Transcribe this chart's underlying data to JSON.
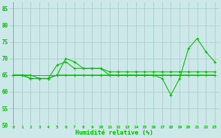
{
  "xlabel": "Humidité relative (%)",
  "xlim": [
    -0.5,
    23.5
  ],
  "ylim": [
    50,
    87
  ],
  "yticks": [
    50,
    55,
    60,
    65,
    70,
    75,
    80,
    85
  ],
  "xticks": [
    0,
    1,
    2,
    3,
    4,
    5,
    6,
    7,
    8,
    9,
    10,
    11,
    12,
    13,
    14,
    15,
    16,
    17,
    18,
    19,
    20,
    21,
    22,
    23
  ],
  "background_color": "#cce8e8",
  "grid_color": "#aacccc",
  "line_color": "#00bb00",
  "series1_y": [
    65,
    65,
    65,
    64,
    64,
    65,
    70,
    69,
    67,
    67,
    67,
    65,
    65,
    65,
    65,
    65,
    65,
    65,
    65,
    65,
    65,
    65,
    65,
    65
  ],
  "series2_y": [
    65,
    65,
    64,
    64,
    64,
    68,
    69,
    67,
    67,
    67,
    67,
    66,
    66,
    66,
    66,
    66,
    66,
    66,
    66,
    66,
    66,
    66,
    66,
    66
  ],
  "series3_y": [
    65,
    65,
    64,
    64,
    64,
    65,
    65,
    65,
    65,
    65,
    65,
    65,
    65,
    65,
    65,
    65,
    65,
    64,
    59,
    64,
    73,
    76,
    72,
    69
  ],
  "series4_y": [
    65,
    65,
    65,
    65,
    65,
    65,
    65,
    65,
    65,
    65,
    65,
    65,
    65,
    65,
    65,
    65,
    65,
    65,
    65,
    65,
    65,
    65,
    65,
    65
  ]
}
